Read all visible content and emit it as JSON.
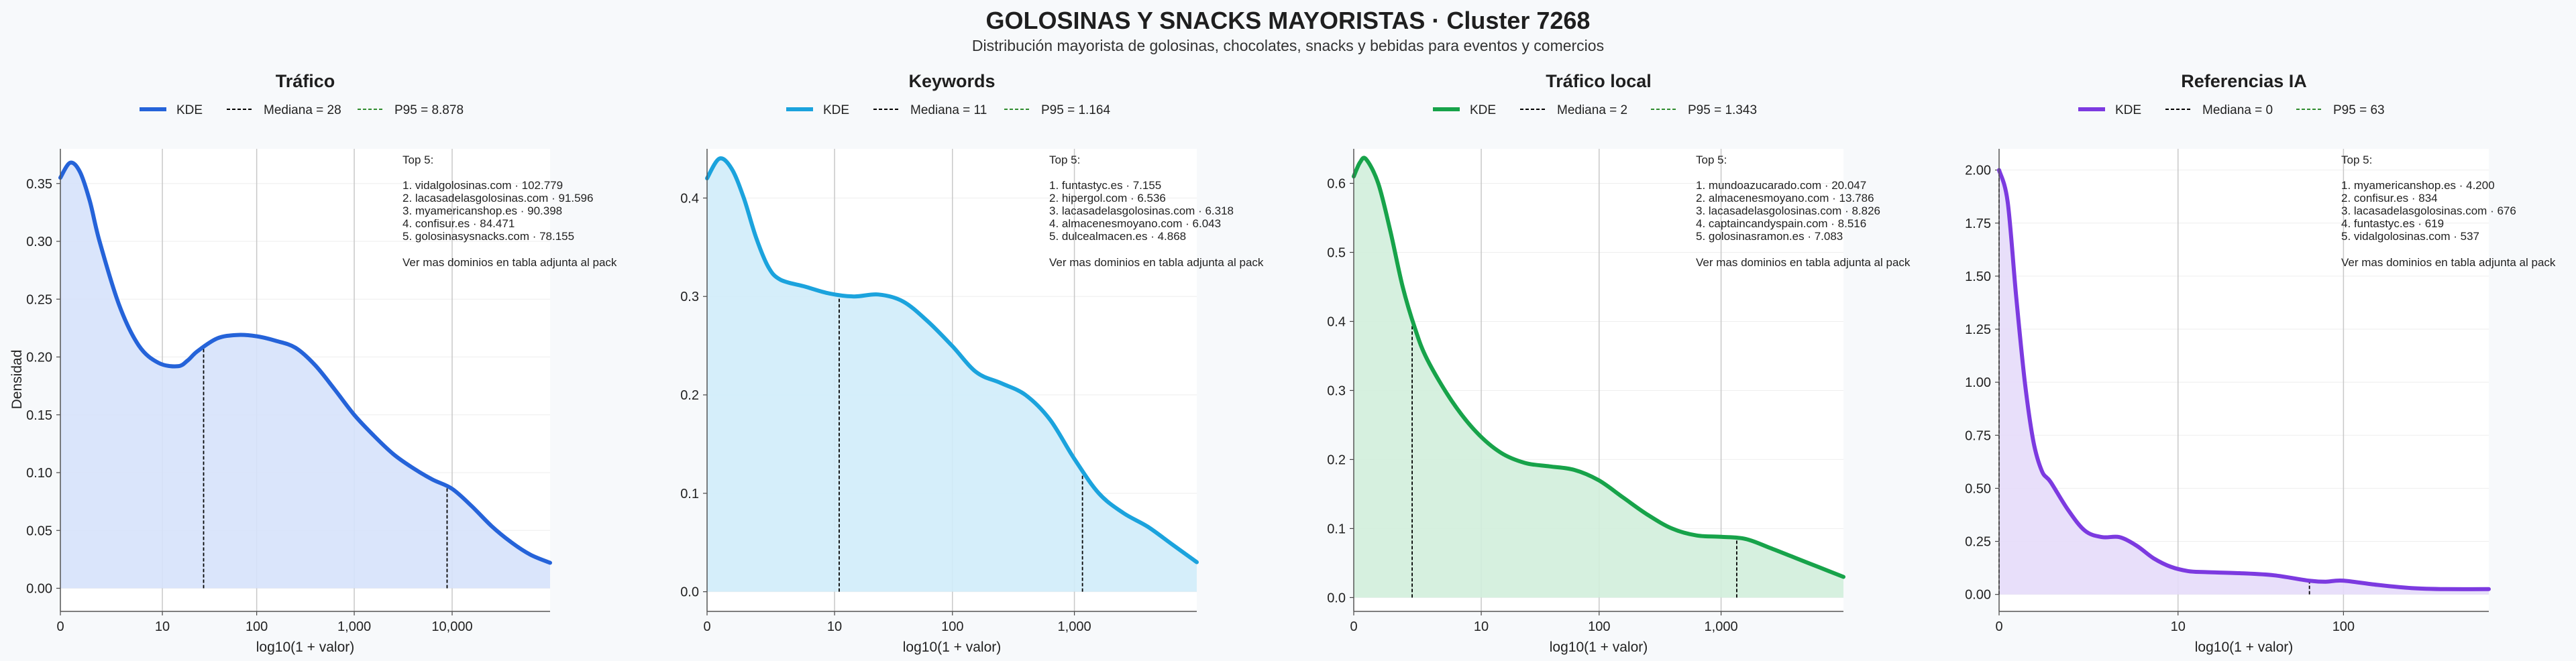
{
  "title": "GOLOSINAS Y SNACKS MAYORISTAS · Cluster 7268",
  "subtitle": "Distribución mayorista de golosinas, chocolates, snacks y bebidas para eventos y comercios",
  "shared": {
    "ylabel": "Densidad",
    "xlabel": "log10(1 + valor)",
    "legend_kde": "KDE",
    "top_heading": "Top 5:",
    "footer_note": "Ver mas dominios en tabla adjunta al pack",
    "median_color": "#000000",
    "p95_color": "#2e8b2e"
  },
  "chart_data": [
    {
      "type": "area",
      "title": "Tráfico",
      "color": "#2563d9",
      "fill": "#d6e2fb",
      "xlim": [
        0,
        5.0
      ],
      "ylim": [
        -0.02,
        0.38
      ],
      "yticks": [
        0,
        0.05,
        0.1,
        0.15,
        0.2,
        0.25,
        0.3,
        0.35
      ],
      "ytick_labels": [
        "0.00",
        "0.05",
        "0.10",
        "0.15",
        "0.20",
        "0.25",
        "0.30",
        "0.35"
      ],
      "xticks": [
        0,
        1.0414,
        2.0043,
        3.0004,
        4.0
      ],
      "xtick_labels": [
        "0",
        "10",
        "100",
        "1,000",
        "10,000"
      ],
      "x": [
        0,
        0.1,
        0.2,
        0.3,
        0.4,
        0.6,
        0.8,
        1.0,
        1.2,
        1.3,
        1.4,
        1.6,
        1.8,
        2.0,
        2.2,
        2.4,
        2.6,
        2.8,
        3.0,
        3.2,
        3.4,
        3.6,
        3.8,
        4.0,
        4.2,
        4.4,
        4.6,
        4.8,
        5.0
      ],
      "y": [
        0.355,
        0.368,
        0.36,
        0.335,
        0.3,
        0.245,
        0.21,
        0.195,
        0.192,
        0.197,
        0.205,
        0.216,
        0.219,
        0.218,
        0.214,
        0.208,
        0.193,
        0.172,
        0.15,
        0.132,
        0.116,
        0.104,
        0.094,
        0.086,
        0.071,
        0.054,
        0.04,
        0.029,
        0.022
      ],
      "median": 1.4624,
      "p95": 3.9484,
      "legend_median": "Mediana = 28",
      "legend_p95": "P95 = 8.878",
      "top5": [
        "1. vidalgolosinas.com · 102.779",
        "2. lacasadelasgolosinas.com · 91.596",
        "3. myamericanshop.es · 90.398",
        "4. confisur.es · 84.471",
        "5. golosinasysnacks.com · 78.155"
      ]
    },
    {
      "type": "area",
      "title": "Keywords",
      "color": "#1ba3dd",
      "fill": "#d0ecfa",
      "xlim": [
        0,
        4.0
      ],
      "ylim": [
        -0.02,
        0.45
      ],
      "yticks": [
        0,
        0.1,
        0.2,
        0.3,
        0.4
      ],
      "ytick_labels": [
        "0.0",
        "0.1",
        "0.2",
        "0.3",
        "0.4"
      ],
      "xticks": [
        0,
        1.0414,
        2.0043,
        3.0004
      ],
      "xtick_labels": [
        "0",
        "10",
        "100",
        "1,000"
      ],
      "x": [
        0,
        0.1,
        0.2,
        0.3,
        0.4,
        0.5,
        0.6,
        0.8,
        1.0,
        1.2,
        1.4,
        1.6,
        1.8,
        2.0,
        2.2,
        2.4,
        2.6,
        2.8,
        3.0,
        3.2,
        3.4,
        3.6,
        3.8,
        4.0
      ],
      "y": [
        0.42,
        0.44,
        0.43,
        0.4,
        0.36,
        0.33,
        0.317,
        0.31,
        0.303,
        0.3,
        0.302,
        0.295,
        0.275,
        0.25,
        0.223,
        0.212,
        0.2,
        0.175,
        0.135,
        0.1,
        0.08,
        0.066,
        0.048,
        0.03
      ],
      "median": 1.0792,
      "p95": 3.0664,
      "legend_median": "Mediana = 11",
      "legend_p95": "P95 = 1.164",
      "top5": [
        "1. funtastyc.es · 7.155",
        "2. hipergol.com · 6.536",
        "3. lacasadelasgolosinas.com · 6.318",
        "4. almacenesmoyano.com · 6.043",
        "5. dulcealmacen.es · 4.868"
      ]
    },
    {
      "type": "area",
      "title": "Tráfico local",
      "color": "#17a34a",
      "fill": "#d2eedb",
      "xlim": [
        0,
        4.0
      ],
      "ylim": [
        -0.02,
        0.65
      ],
      "yticks": [
        0,
        0.1,
        0.2,
        0.3,
        0.4,
        0.5,
        0.6
      ],
      "ytick_labels": [
        "0.0",
        "0.1",
        "0.2",
        "0.3",
        "0.4",
        "0.5",
        "0.6"
      ],
      "xticks": [
        0,
        1.0414,
        2.0043,
        3.0004
      ],
      "xtick_labels": [
        "0",
        "10",
        "100",
        "1,000"
      ],
      "x": [
        0,
        0.05,
        0.1,
        0.2,
        0.3,
        0.4,
        0.5,
        0.6,
        0.8,
        1.0,
        1.2,
        1.4,
        1.6,
        1.8,
        2.0,
        2.2,
        2.4,
        2.6,
        2.8,
        3.0,
        3.2,
        3.4,
        3.6,
        3.8,
        4.0
      ],
      "y": [
        0.61,
        0.63,
        0.635,
        0.6,
        0.53,
        0.45,
        0.39,
        0.345,
        0.285,
        0.24,
        0.21,
        0.195,
        0.19,
        0.185,
        0.17,
        0.145,
        0.12,
        0.1,
        0.09,
        0.088,
        0.085,
        0.072,
        0.058,
        0.044,
        0.03
      ],
      "median": 0.4771,
      "p95": 3.1284,
      "legend_median": "Mediana = 2",
      "legend_p95": "P95 = 1.343",
      "top5": [
        "1. mundoazucarado.com · 20.047",
        "2. almacenesmoyano.com · 13.786",
        "3. lacasadelasgolosinas.com · 8.826",
        "4. captaincandyspain.com · 8.516",
        "5. golosinasramon.es · 7.083"
      ]
    },
    {
      "type": "area",
      "title": "Referencias IA",
      "color": "#7c3ae0",
      "fill": "#e6dbf9",
      "xlim": [
        0,
        2.85
      ],
      "ylim": [
        -0.08,
        2.1
      ],
      "yticks": [
        0,
        0.25,
        0.5,
        0.75,
        1.0,
        1.25,
        1.5,
        1.75,
        2.0
      ],
      "ytick_labels": [
        "0.00",
        "0.25",
        "0.50",
        "0.75",
        "1.00",
        "1.25",
        "1.50",
        "1.75",
        "2.00"
      ],
      "xticks": [
        0,
        1.0414,
        2.0043
      ],
      "xtick_labels": [
        "0",
        "10",
        "100"
      ],
      "x": [
        0,
        0.05,
        0.1,
        0.15,
        0.2,
        0.25,
        0.3,
        0.4,
        0.5,
        0.6,
        0.7,
        0.8,
        0.9,
        1.0,
        1.1,
        1.2,
        1.4,
        1.6,
        1.8,
        1.9,
        2.0,
        2.2,
        2.4,
        2.6,
        2.85
      ],
      "y": [
        2.0,
        1.85,
        1.4,
        1.0,
        0.72,
        0.58,
        0.53,
        0.4,
        0.3,
        0.27,
        0.27,
        0.23,
        0.17,
        0.13,
        0.11,
        0.105,
        0.1,
        0.09,
        0.065,
        0.06,
        0.065,
        0.045,
        0.03,
        0.025,
        0.025
      ],
      "median": 0,
      "p95": 1.8062,
      "legend_median": "Mediana = 0",
      "legend_p95": "P95 = 63",
      "top5": [
        "1. myamericanshop.es · 4.200",
        "2. confisur.es · 834",
        "3. lacasadelasgolosinas.com · 676",
        "4. funtastyc.es · 619",
        "5. vidalgolosinas.com · 537"
      ]
    }
  ]
}
